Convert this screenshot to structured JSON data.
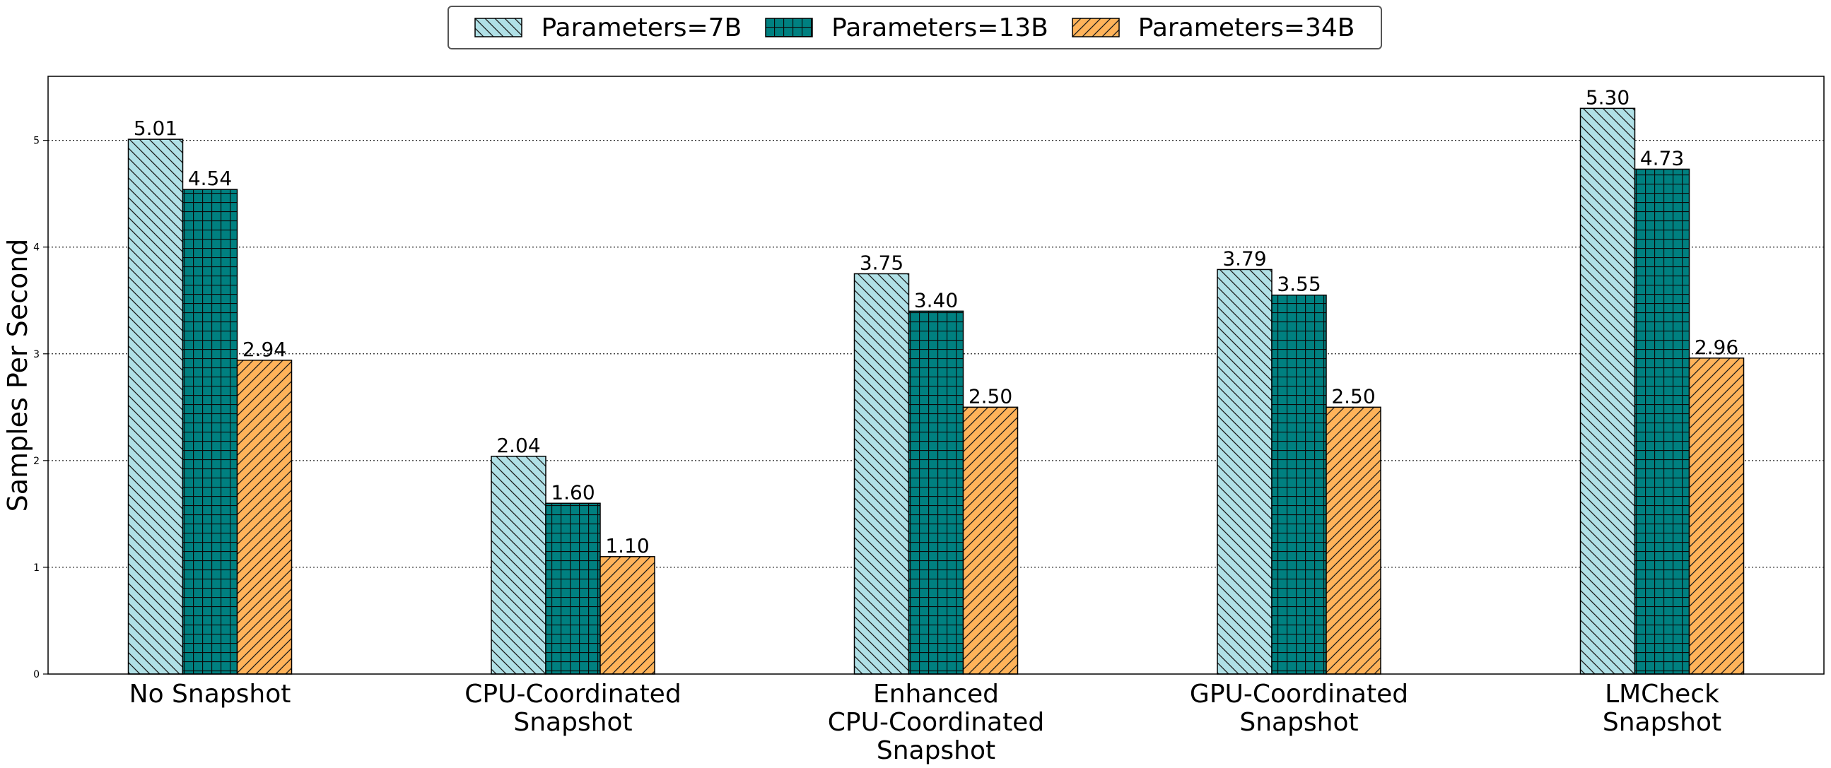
{
  "chart_data": {
    "type": "bar",
    "title": "",
    "xlabel": "",
    "ylabel": "Samples Per Second",
    "ylim": [
      0,
      5.6
    ],
    "yticks": [
      0,
      1,
      2,
      3,
      4,
      5
    ],
    "grid": "y, dotted",
    "legend_position": "top-center, outside",
    "categories": [
      "No Snapshot",
      "CPU-Coordinated\nSnapshot",
      "Enhanced\nCPU-Coordinated\nSnapshot",
      "GPU-Coordinated\nSnapshot",
      "LMCheck\nSnapshot"
    ],
    "series": [
      {
        "name": "Parameters=7B",
        "values": [
          5.01,
          2.04,
          3.75,
          3.79,
          5.3
        ],
        "labels": [
          "5.01",
          "2.04",
          "3.75",
          "3.79",
          "5.30"
        ],
        "color": "#b0e0e6",
        "hatch": "backslash"
      },
      {
        "name": "Parameters=13B",
        "values": [
          4.54,
          1.6,
          3.4,
          3.55,
          4.73
        ],
        "labels": [
          "4.54",
          "1.60",
          "3.40",
          "3.55",
          "4.73"
        ],
        "color": "#008080",
        "hatch": "grid"
      },
      {
        "name": "Parameters=34B",
        "values": [
          2.94,
          1.1,
          2.5,
          2.5,
          2.96
        ],
        "labels": [
          "2.94",
          "1.10",
          "2.50",
          "2.50",
          "2.96"
        ],
        "color": "#ffb35a",
        "hatch": "slash"
      }
    ]
  }
}
